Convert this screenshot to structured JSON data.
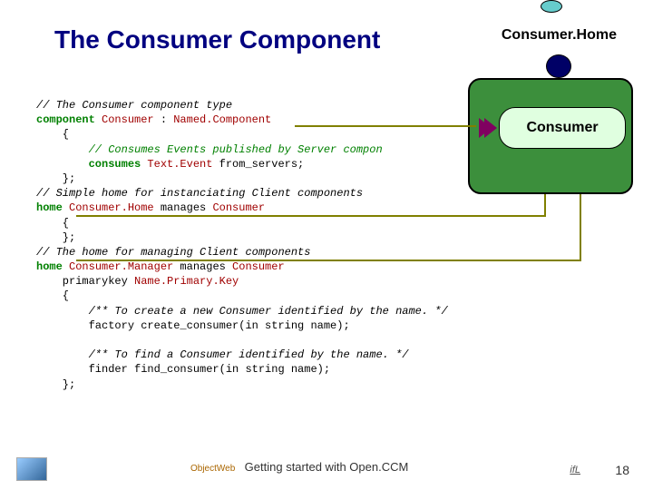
{
  "title": "The Consumer Component",
  "diagram": {
    "home_label": "Consumer.Home",
    "consumer_label": "Consumer",
    "box_color": "#3c8f3c",
    "pill_color": "#e0ffe0",
    "circle_color": "#000066",
    "ellipse_color": "#66cccc"
  },
  "code": {
    "c1": "// The Consumer component type",
    "l2a": "component",
    "l2b": "Consumer",
    "l2c": " : ",
    "l2d": "Named.Component",
    "l3": "    {",
    "c4": "        // Consumes Events published by Server compon",
    "l5a": "        consumes",
    "l5b": "Text.Event",
    "l5c": " from_servers;",
    "l6": "    };",
    "c7": "// Simple home for instanciating Client components",
    "l8a": "home",
    "l8b": "Consumer.Home",
    "l8c": " manages ",
    "l8d": "Consumer",
    "l9": "    {",
    "l10": "    };",
    "c11": "// The home for managing Client components",
    "l12a": "home",
    "l12b": "Consumer.Manager",
    "l12c": " manages ",
    "l12d": "Consumer",
    "l13a": "    primarykey ",
    "l13b": "Name.Primary.Key",
    "l14": "    {",
    "c15": "        /** To create a new Consumer identified by the name. */",
    "l16": "        factory create_consumer(in string name);",
    "blank": "",
    "c18": "        /** To find a Consumer identified by the name. */",
    "l19": "        finder find_consumer(in string name);",
    "l20": "    };"
  },
  "footer": {
    "ow": "ObjectWeb",
    "text": "Getting started with Open.CCM",
    "rlogo": "ifL",
    "page": "18"
  }
}
